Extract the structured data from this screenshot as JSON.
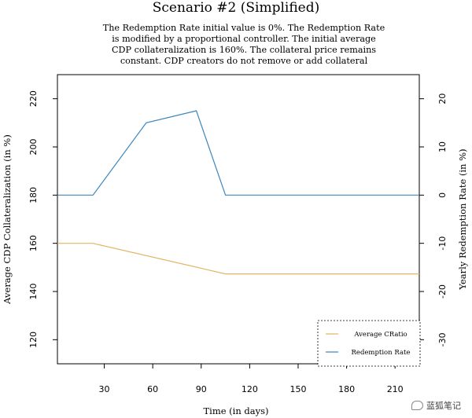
{
  "chart_data": {
    "type": "line",
    "title": "Scenario #2 (Simplified)",
    "subtitle": [
      "The Redemption Rate initial value is 0%. The Redemption Rate",
      "is modified by a proportional controller. The initial average",
      "CDP collateralization is 160%. The collateral price remains",
      "constant. CDP creators do not remove or add collateral"
    ],
    "xlabel": "Time (in days)",
    "ylabel_left": "Average CDP Collateralization (in %)",
    "ylabel_right": "Yearly Redemption Rate (in %)",
    "xlim": [
      1,
      225
    ],
    "ylim_left": [
      110,
      230
    ],
    "ylim_right": [
      -35,
      25
    ],
    "x_ticks": [
      30,
      60,
      90,
      120,
      150,
      180,
      210
    ],
    "y_left_ticks": [
      120,
      140,
      160,
      180,
      200,
      220
    ],
    "y_right_ticks": [
      -30,
      -20,
      -10,
      0,
      10,
      20
    ],
    "grid": false,
    "legend_position": "bottom-right",
    "series": [
      {
        "name": "Average CRatio",
        "axis": "left",
        "color": "#E2B566",
        "x": [
          1,
          23,
          105,
          225
        ],
        "y": [
          160,
          160,
          147.3,
          147.3
        ]
      },
      {
        "name": "Redemption Rate",
        "axis": "right",
        "color": "#3B86BE",
        "x": [
          1,
          23,
          56,
          87,
          105,
          225
        ],
        "y": [
          0,
          0,
          15,
          17.5,
          0,
          0
        ]
      }
    ]
  },
  "watermark": {
    "text": "蓝狐笔记",
    "icon": "wechat-icon"
  }
}
